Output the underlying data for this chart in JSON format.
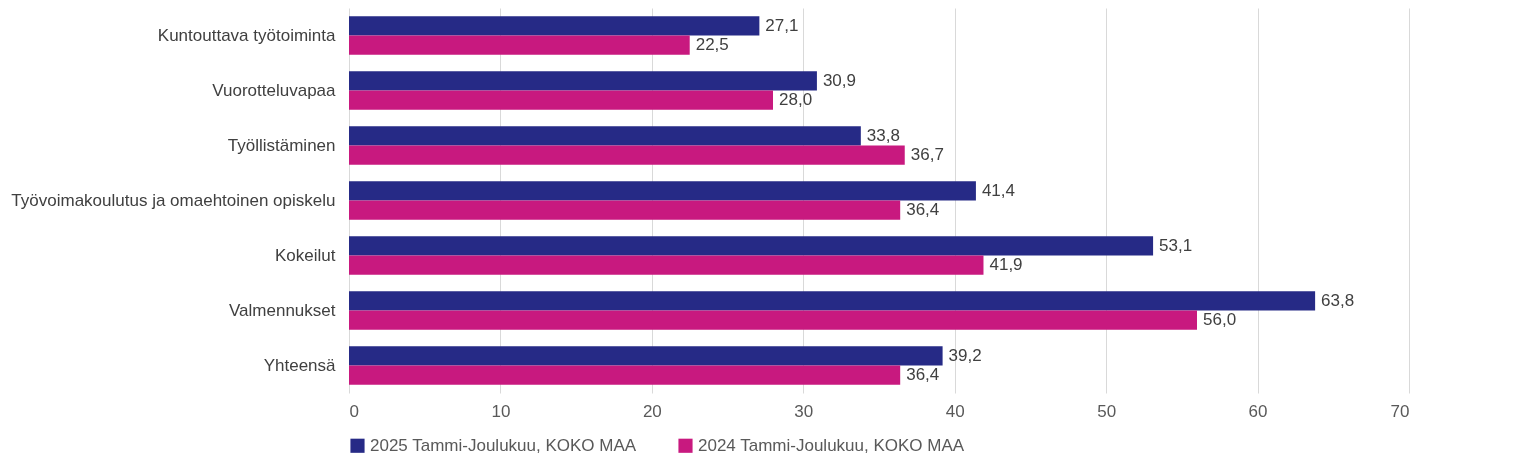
{
  "chart_data": {
    "type": "bar",
    "orientation": "horizontal",
    "categories": [
      "Kuntouttava työtoiminta",
      "Vuorotteluvapaa",
      "Työllistäminen",
      "Työvoimakoulutus ja omaehtoinen opiskelu",
      "Kokeilut",
      "Valmennukset",
      "Yhteensä"
    ],
    "series": [
      {
        "name": "2025 Tammi-Joulukuu, KOKO MAA",
        "color": "#262a86",
        "values": [
          27.1,
          30.9,
          33.8,
          41.4,
          53.1,
          63.8,
          39.2
        ],
        "value_labels": [
          "27,1",
          "30,9",
          "33,8",
          "41,4",
          "53,1",
          "63,8",
          "39,2"
        ]
      },
      {
        "name": "2024 Tammi-Joulukuu, KOKO MAA",
        "color": "#c8197f",
        "values": [
          22.5,
          28.0,
          36.7,
          36.4,
          41.9,
          56.0,
          36.4
        ],
        "value_labels": [
          "22,5",
          "28,0",
          "36,7",
          "36,4",
          "41,9",
          "56,0",
          "36,4"
        ]
      }
    ],
    "xlim": [
      0,
      70
    ],
    "xticks": [
      0,
      10,
      20,
      30,
      40,
      50,
      60,
      70
    ],
    "grid": "x",
    "legend": "bottom"
  }
}
